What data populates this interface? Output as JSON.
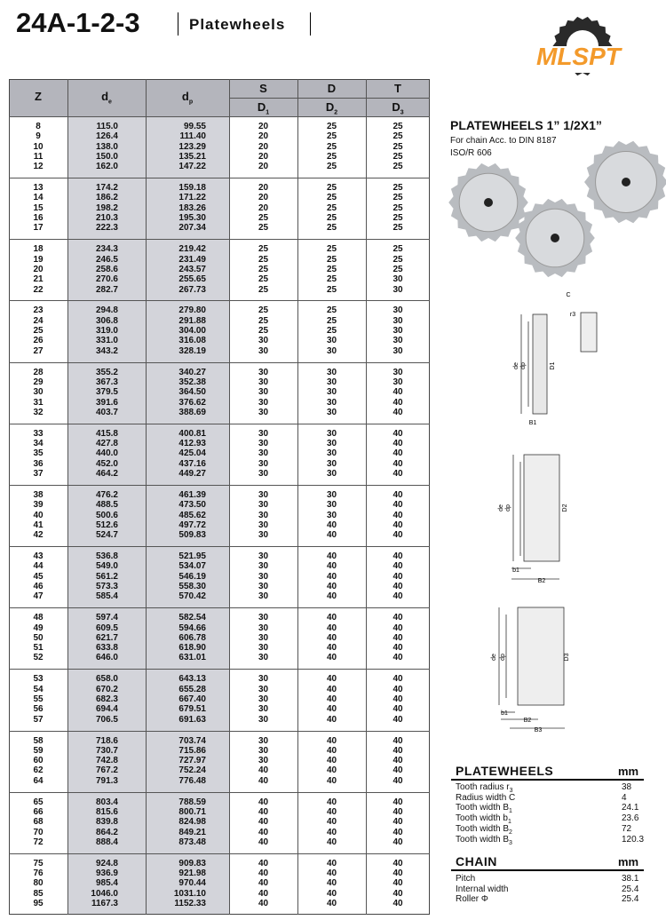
{
  "header": {
    "title": "24A-1-2-3",
    "subtitle": "Platewheels",
    "logo": "MLSPT"
  },
  "table": {
    "columns": [
      {
        "main": "Z"
      },
      {
        "main": "d",
        "sub": "e"
      },
      {
        "main": "d",
        "sub": "p"
      }
    ],
    "group_headers": [
      "S",
      "D",
      "T"
    ],
    "subheaders": [
      {
        "main": "D",
        "sub": "1"
      },
      {
        "main": "D",
        "sub": "2"
      },
      {
        "main": "D",
        "sub": "3"
      }
    ],
    "groups": [
      [
        [
          "8",
          "115.0",
          "99.55",
          "20",
          "25",
          "25"
        ],
        [
          "9",
          "126.4",
          "111.40",
          "20",
          "25",
          "25"
        ],
        [
          "10",
          "138.0",
          "123.29",
          "20",
          "25",
          "25"
        ],
        [
          "11",
          "150.0",
          "135.21",
          "20",
          "25",
          "25"
        ],
        [
          "12",
          "162.0",
          "147.22",
          "20",
          "25",
          "25"
        ]
      ],
      [
        [
          "13",
          "174.2",
          "159.18",
          "20",
          "25",
          "25"
        ],
        [
          "14",
          "186.2",
          "171.22",
          "20",
          "25",
          "25"
        ],
        [
          "15",
          "198.2",
          "183.26",
          "20",
          "25",
          "25"
        ],
        [
          "16",
          "210.3",
          "195.30",
          "25",
          "25",
          "25"
        ],
        [
          "17",
          "222.3",
          "207.34",
          "25",
          "25",
          "25"
        ]
      ],
      [
        [
          "18",
          "234.3",
          "219.42",
          "25",
          "25",
          "25"
        ],
        [
          "19",
          "246.5",
          "231.49",
          "25",
          "25",
          "25"
        ],
        [
          "20",
          "258.6",
          "243.57",
          "25",
          "25",
          "25"
        ],
        [
          "21",
          "270.6",
          "255.65",
          "25",
          "25",
          "30"
        ],
        [
          "22",
          "282.7",
          "267.73",
          "25",
          "25",
          "30"
        ]
      ],
      [
        [
          "23",
          "294.8",
          "279.80",
          "25",
          "25",
          "30"
        ],
        [
          "24",
          "306.8",
          "291.88",
          "25",
          "25",
          "30"
        ],
        [
          "25",
          "319.0",
          "304.00",
          "25",
          "25",
          "30"
        ],
        [
          "26",
          "331.0",
          "316.08",
          "30",
          "30",
          "30"
        ],
        [
          "27",
          "343.2",
          "328.19",
          "30",
          "30",
          "30"
        ]
      ],
      [
        [
          "28",
          "355.2",
          "340.27",
          "30",
          "30",
          "30"
        ],
        [
          "29",
          "367.3",
          "352.38",
          "30",
          "30",
          "30"
        ],
        [
          "30",
          "379.5",
          "364.50",
          "30",
          "30",
          "40"
        ],
        [
          "31",
          "391.6",
          "376.62",
          "30",
          "30",
          "40"
        ],
        [
          "32",
          "403.7",
          "388.69",
          "30",
          "30",
          "40"
        ]
      ],
      [
        [
          "33",
          "415.8",
          "400.81",
          "30",
          "30",
          "40"
        ],
        [
          "34",
          "427.8",
          "412.93",
          "30",
          "30",
          "40"
        ],
        [
          "35",
          "440.0",
          "425.04",
          "30",
          "30",
          "40"
        ],
        [
          "36",
          "452.0",
          "437.16",
          "30",
          "30",
          "40"
        ],
        [
          "37",
          "464.2",
          "449.27",
          "30",
          "30",
          "40"
        ]
      ],
      [
        [
          "38",
          "476.2",
          "461.39",
          "30",
          "30",
          "40"
        ],
        [
          "39",
          "488.5",
          "473.50",
          "30",
          "30",
          "40"
        ],
        [
          "40",
          "500.6",
          "485.62",
          "30",
          "30",
          "40"
        ],
        [
          "41",
          "512.6",
          "497.72",
          "30",
          "40",
          "40"
        ],
        [
          "42",
          "524.7",
          "509.83",
          "30",
          "40",
          "40"
        ]
      ],
      [
        [
          "43",
          "536.8",
          "521.95",
          "30",
          "40",
          "40"
        ],
        [
          "44",
          "549.0",
          "534.07",
          "30",
          "40",
          "40"
        ],
        [
          "45",
          "561.2",
          "546.19",
          "30",
          "40",
          "40"
        ],
        [
          "46",
          "573.3",
          "558.30",
          "30",
          "40",
          "40"
        ],
        [
          "47",
          "585.4",
          "570.42",
          "30",
          "40",
          "40"
        ]
      ],
      [
        [
          "48",
          "597.4",
          "582.54",
          "30",
          "40",
          "40"
        ],
        [
          "49",
          "609.5",
          "594.66",
          "30",
          "40",
          "40"
        ],
        [
          "50",
          "621.7",
          "606.78",
          "30",
          "40",
          "40"
        ],
        [
          "51",
          "633.8",
          "618.90",
          "30",
          "40",
          "40"
        ],
        [
          "52",
          "646.0",
          "631.01",
          "30",
          "40",
          "40"
        ]
      ],
      [
        [
          "53",
          "658.0",
          "643.13",
          "30",
          "40",
          "40"
        ],
        [
          "54",
          "670.2",
          "655.28",
          "30",
          "40",
          "40"
        ],
        [
          "55",
          "682.3",
          "667.40",
          "30",
          "40",
          "40"
        ],
        [
          "56",
          "694.4",
          "679.51",
          "30",
          "40",
          "40"
        ],
        [
          "57",
          "706.5",
          "691.63",
          "30",
          "40",
          "40"
        ]
      ],
      [
        [
          "58",
          "718.6",
          "703.74",
          "30",
          "40",
          "40"
        ],
        [
          "59",
          "730.7",
          "715.86",
          "30",
          "40",
          "40"
        ],
        [
          "60",
          "742.8",
          "727.97",
          "30",
          "40",
          "40"
        ],
        [
          "62",
          "767.2",
          "752.24",
          "40",
          "40",
          "40"
        ],
        [
          "64",
          "791.3",
          "776.48",
          "40",
          "40",
          "40"
        ]
      ],
      [
        [
          "65",
          "803.4",
          "788.59",
          "40",
          "40",
          "40"
        ],
        [
          "66",
          "815.6",
          "800.71",
          "40",
          "40",
          "40"
        ],
        [
          "68",
          "839.8",
          "824.98",
          "40",
          "40",
          "40"
        ],
        [
          "70",
          "864.2",
          "849.21",
          "40",
          "40",
          "40"
        ],
        [
          "72",
          "888.4",
          "873.48",
          "40",
          "40",
          "40"
        ]
      ],
      [
        [
          "75",
          "924.8",
          "909.83",
          "40",
          "40",
          "40"
        ],
        [
          "76",
          "936.9",
          "921.98",
          "40",
          "40",
          "40"
        ],
        [
          "80",
          "985.4",
          "970.44",
          "40",
          "40",
          "40"
        ],
        [
          "85",
          "1046.0",
          "1031.10",
          "40",
          "40",
          "40"
        ],
        [
          "95",
          "1167.3",
          "1152.33",
          "40",
          "40",
          "40"
        ]
      ]
    ]
  },
  "product": {
    "title": "PLATEWHEELS 1” 1/2X1”",
    "notes": [
      "For chain Acc. to DIN 8187",
      "ISO/R 606"
    ]
  },
  "drawings": {
    "inset": [
      "C",
      "r3"
    ],
    "simplex": [
      "de",
      "dp",
      "D1",
      "B1"
    ],
    "duplex": [
      "de",
      "dp",
      "D2",
      "b1",
      "B2"
    ],
    "triplex": [
      "de",
      "dp",
      "D3",
      "b1",
      "B2",
      "B3"
    ]
  },
  "specs": [
    {
      "title": "PLATEWHEELS",
      "unit": "mm",
      "rows": [
        {
          "label": "Tooth radius r",
          "sub": "3",
          "value": "38"
        },
        {
          "label": "Radius width C",
          "value": "4"
        },
        {
          "label": "Tooth width B",
          "sub": "1",
          "value": "24.1"
        },
        {
          "label": "Tooth width b",
          "sub": "1",
          "value": "23.6"
        },
        {
          "label": "Tooth width B",
          "sub": "2",
          "value": "72"
        },
        {
          "label": "Tooth width B",
          "sub": "3",
          "value": "120.3"
        }
      ]
    },
    {
      "title": "CHAIN",
      "unit": "mm",
      "rows": [
        {
          "label": "Pitch",
          "value": "38.1"
        },
        {
          "label": "Internal width",
          "value": "25.4"
        },
        {
          "label": "Roller Φ",
          "value": "25.4"
        }
      ]
    }
  ]
}
